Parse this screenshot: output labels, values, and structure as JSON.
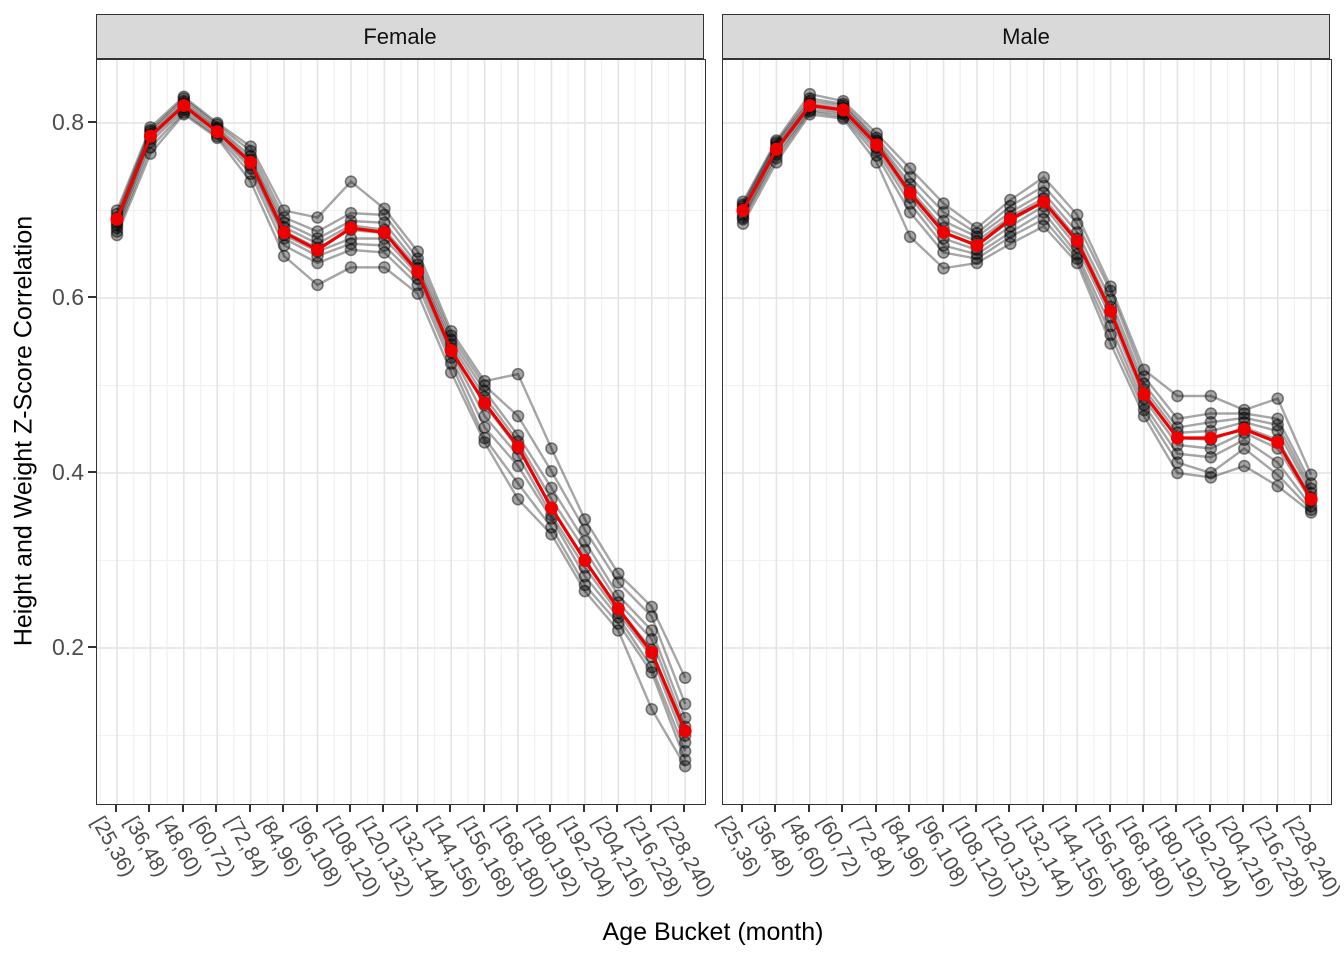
{
  "chart": {
    "y_axis_title": "Height and Weight Z-Score Correlation",
    "x_axis_title": "Age Bucket (month)"
  },
  "chart_data": {
    "type": "line",
    "title": "",
    "xlabel": "Age Bucket (month)",
    "ylabel": "Height and Weight Z-Score Correlation",
    "legend_position": "none",
    "grid": true,
    "ylim": [
      0.02,
      0.87
    ],
    "y_tick_labels": [
      "0.8",
      "0.6",
      "0.4",
      "0.2"
    ],
    "y_ticks": [
      0.8,
      0.6,
      0.4,
      0.2
    ],
    "y_minor_gridlines": [
      0.7,
      0.5,
      0.3,
      0.1
    ],
    "categories": [
      "[25,36)",
      "[36,48)",
      "[48,60)",
      "[60,72)",
      "[72,84)",
      "[84,96)",
      "[96,108)",
      "[108,120)",
      "[120,132)",
      "[132,144)",
      "[144,156)",
      "[156,168)",
      "[168,180)",
      "[180,192)",
      "[192,204)",
      "[204,216)",
      "[216,228)",
      "[228,240)"
    ],
    "colors": {
      "mean_line": "#ee0000",
      "individual_line": "#000000",
      "grid_major": "#e4e4e4",
      "grid_minor": "#f1f1f1",
      "strip_bg": "#d9d9d9",
      "panel_border": "#333333",
      "tick_text": "#4d4d4d"
    },
    "facets": [
      {
        "label": "Female",
        "mean": [
          0.69,
          0.785,
          0.82,
          0.79,
          0.755,
          0.675,
          0.655,
          0.68,
          0.675,
          0.63,
          0.54,
          0.48,
          0.43,
          0.36,
          0.3,
          0.245,
          0.195,
          0.105
        ],
        "series": [
          [
            0.672,
            0.765,
            0.81,
            0.783,
            0.733,
            0.648,
            0.615,
            0.635,
            0.635,
            0.605,
            0.515,
            0.435,
            0.37,
            0.33,
            0.265,
            0.22,
            0.13,
            0.065
          ],
          [
            0.676,
            0.772,
            0.812,
            0.785,
            0.742,
            0.66,
            0.64,
            0.655,
            0.652,
            0.615,
            0.525,
            0.44,
            0.388,
            0.338,
            0.272,
            0.228,
            0.172,
            0.072
          ],
          [
            0.68,
            0.778,
            0.815,
            0.788,
            0.748,
            0.668,
            0.648,
            0.662,
            0.66,
            0.622,
            0.532,
            0.452,
            0.408,
            0.348,
            0.282,
            0.235,
            0.178,
            0.082
          ],
          [
            0.683,
            0.782,
            0.818,
            0.79,
            0.752,
            0.672,
            0.653,
            0.668,
            0.668,
            0.627,
            0.538,
            0.465,
            0.42,
            0.352,
            0.292,
            0.24,
            0.19,
            0.092
          ],
          [
            0.686,
            0.785,
            0.82,
            0.79,
            0.755,
            0.676,
            0.657,
            0.678,
            0.674,
            0.63,
            0.542,
            0.478,
            0.428,
            0.36,
            0.3,
            0.245,
            0.198,
            0.1
          ],
          [
            0.689,
            0.787,
            0.822,
            0.793,
            0.758,
            0.681,
            0.662,
            0.683,
            0.678,
            0.634,
            0.547,
            0.487,
            0.436,
            0.37,
            0.312,
            0.252,
            0.21,
            0.11
          ],
          [
            0.692,
            0.79,
            0.825,
            0.795,
            0.762,
            0.686,
            0.668,
            0.688,
            0.686,
            0.638,
            0.552,
            0.494,
            0.443,
            0.383,
            0.322,
            0.26,
            0.22,
            0.12
          ],
          [
            0.696,
            0.792,
            0.828,
            0.798,
            0.768,
            0.692,
            0.676,
            0.697,
            0.695,
            0.645,
            0.557,
            0.5,
            0.465,
            0.402,
            0.335,
            0.275,
            0.236,
            0.136
          ],
          [
            0.7,
            0.795,
            0.83,
            0.8,
            0.773,
            0.7,
            0.692,
            0.733,
            0.702,
            0.653,
            0.562,
            0.505,
            0.513,
            0.428,
            0.347,
            0.285,
            0.247,
            0.166
          ]
        ]
      },
      {
        "label": "Male",
        "mean": [
          0.7,
          0.77,
          0.82,
          0.815,
          0.775,
          0.72,
          0.675,
          0.66,
          0.69,
          0.71,
          0.665,
          0.585,
          0.49,
          0.44,
          0.44,
          0.45,
          0.435,
          0.37
        ],
        "series": [
          [
            0.685,
            0.755,
            0.81,
            0.805,
            0.755,
            0.67,
            0.634,
            0.64,
            0.662,
            0.682,
            0.64,
            0.548,
            0.465,
            0.4,
            0.395,
            0.408,
            0.385,
            0.355
          ],
          [
            0.69,
            0.76,
            0.813,
            0.807,
            0.763,
            0.698,
            0.652,
            0.645,
            0.67,
            0.69,
            0.645,
            0.558,
            0.472,
            0.412,
            0.4,
            0.428,
            0.398,
            0.358
          ],
          [
            0.692,
            0.764,
            0.815,
            0.81,
            0.768,
            0.708,
            0.66,
            0.65,
            0.675,
            0.698,
            0.65,
            0.568,
            0.478,
            0.422,
            0.418,
            0.438,
            0.412,
            0.362
          ],
          [
            0.695,
            0.768,
            0.818,
            0.812,
            0.772,
            0.715,
            0.668,
            0.655,
            0.682,
            0.705,
            0.658,
            0.578,
            0.485,
            0.432,
            0.428,
            0.446,
            0.428,
            0.368
          ],
          [
            0.7,
            0.77,
            0.82,
            0.815,
            0.775,
            0.72,
            0.675,
            0.66,
            0.688,
            0.71,
            0.663,
            0.585,
            0.49,
            0.44,
            0.438,
            0.452,
            0.438,
            0.372
          ],
          [
            0.702,
            0.773,
            0.822,
            0.817,
            0.778,
            0.724,
            0.68,
            0.665,
            0.693,
            0.714,
            0.668,
            0.59,
            0.496,
            0.446,
            0.448,
            0.458,
            0.448,
            0.377
          ],
          [
            0.705,
            0.776,
            0.825,
            0.82,
            0.78,
            0.73,
            0.688,
            0.67,
            0.698,
            0.72,
            0.675,
            0.598,
            0.502,
            0.452,
            0.458,
            0.463,
            0.455,
            0.382
          ],
          [
            0.707,
            0.778,
            0.828,
            0.822,
            0.783,
            0.738,
            0.698,
            0.674,
            0.705,
            0.728,
            0.685,
            0.608,
            0.51,
            0.462,
            0.468,
            0.468,
            0.462,
            0.388
          ],
          [
            0.71,
            0.78,
            0.833,
            0.825,
            0.788,
            0.748,
            0.708,
            0.68,
            0.712,
            0.738,
            0.695,
            0.613,
            0.518,
            0.488,
            0.488,
            0.472,
            0.485,
            0.398
          ]
        ]
      }
    ]
  }
}
